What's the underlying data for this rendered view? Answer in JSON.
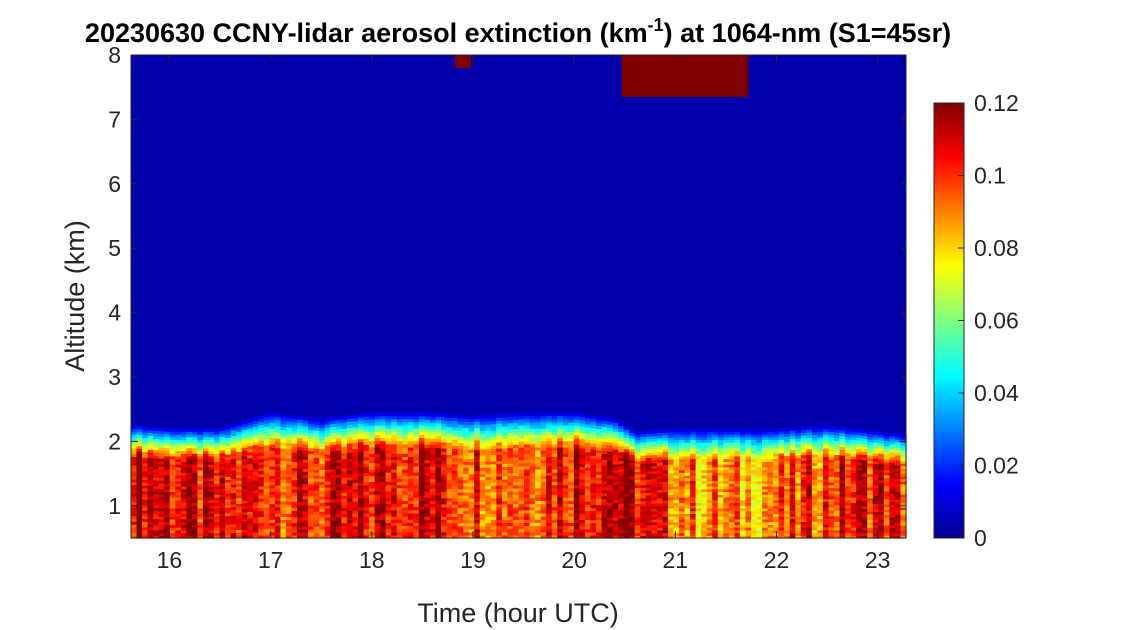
{
  "chart_data": {
    "type": "heatmap",
    "title_prefix": "20230630 CCNY-lidar aerosol extinction (km",
    "title_superscript": "-1",
    "title_suffix": ") at 1064-nm (S1=45sr)",
    "xlabel": "Time (hour UTC)",
    "ylabel": "Altitude (km)",
    "xlim": [
      15.62,
      23.28
    ],
    "ylim": [
      0.5,
      8
    ],
    "x_ticks": [
      16,
      17,
      18,
      19,
      20,
      21,
      22,
      23
    ],
    "x_tick_labels": [
      "16",
      "17",
      "18",
      "19",
      "20",
      "21",
      "22",
      "23"
    ],
    "y_ticks": [
      1,
      2,
      3,
      4,
      5,
      6,
      7,
      8
    ],
    "y_tick_labels": [
      "1",
      "2",
      "3",
      "4",
      "5",
      "6",
      "7",
      "8"
    ],
    "colormap": "jet",
    "clim": [
      0,
      0.12
    ],
    "colorbar_ticks": [
      0,
      0.02,
      0.04,
      0.06,
      0.08,
      0.1,
      0.12
    ],
    "colorbar_tick_labels": [
      "0",
      "0.02",
      "0.04",
      "0.06",
      "0.08",
      "0.1",
      "0.12"
    ],
    "colorbar_position": "right",
    "background_value": 0.005,
    "boundary_layer_top_km": [
      [
        15.62,
        2.25
      ],
      [
        16.0,
        2.2
      ],
      [
        16.5,
        2.2
      ],
      [
        17.0,
        2.45
      ],
      [
        17.5,
        2.35
      ],
      [
        18.0,
        2.45
      ],
      [
        18.5,
        2.45
      ],
      [
        19.0,
        2.4
      ],
      [
        19.5,
        2.45
      ],
      [
        20.0,
        2.45
      ],
      [
        20.4,
        2.35
      ],
      [
        20.6,
        2.15
      ],
      [
        21.0,
        2.2
      ],
      [
        21.5,
        2.2
      ],
      [
        22.0,
        2.2
      ],
      [
        22.5,
        2.25
      ],
      [
        23.0,
        2.15
      ],
      [
        23.28,
        2.1
      ]
    ],
    "boundary_layer_mean_extinction": [
      [
        15.62,
        0.118
      ],
      [
        16.0,
        0.11
      ],
      [
        16.5,
        0.1
      ],
      [
        17.0,
        0.105
      ],
      [
        17.5,
        0.1
      ],
      [
        18.0,
        0.105
      ],
      [
        18.5,
        0.11
      ],
      [
        19.0,
        0.1
      ],
      [
        19.5,
        0.098
      ],
      [
        20.0,
        0.11
      ],
      [
        20.4,
        0.115
      ],
      [
        20.8,
        0.1
      ],
      [
        21.2,
        0.09
      ],
      [
        21.6,
        0.085
      ],
      [
        22.0,
        0.09
      ],
      [
        22.5,
        0.1
      ],
      [
        23.0,
        0.108
      ],
      [
        23.28,
        0.1
      ]
    ],
    "cloud_layers": [
      {
        "x_start": 20.47,
        "x_end": 21.72,
        "base_km": 7.35,
        "top_km": 8,
        "extinction": 0.12
      },
      {
        "x_start": 18.82,
        "x_end": 18.98,
        "base_km": 7.8,
        "top_km": 8,
        "extinction": 0.12
      }
    ]
  }
}
